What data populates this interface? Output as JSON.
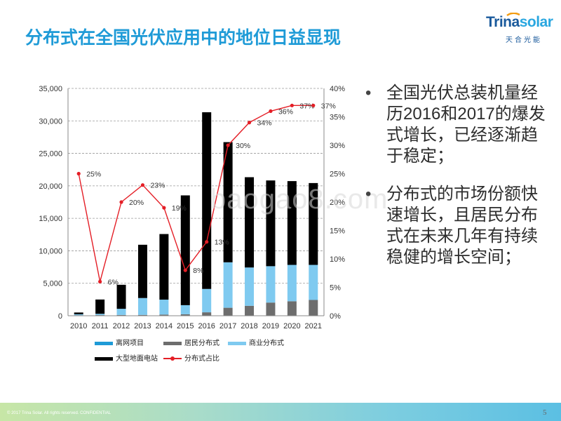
{
  "title": "分布式在全国光伏应用中的地位日益显现",
  "logo": {
    "word_a": "Trina",
    "word_b": "solar",
    "sub": "天合光能"
  },
  "watermark": "baogao8.com",
  "bullets": [
    "全国光伏总装机量经历2016和2017的爆发式增长，已经逐渐趋于稳定；",
    "分布式的市场份额快速增长，且居民分布式在未来几年有持续稳健的增长空间；"
  ],
  "footer": {
    "copyright": "© 2017 Trina Solar. All rights reserved. CONFIDENTIAL",
    "page": "5"
  },
  "colors": {
    "offgrid": "#1f9bd7",
    "residential": "#6d6d6d",
    "commercial": "#7fcaf0",
    "utility": "#000000",
    "share": "#e41e26",
    "title": "#1f9bd7"
  },
  "chart_data": {
    "type": "bar",
    "stacked": true,
    "categories": [
      "2010",
      "2011",
      "2012",
      "2013",
      "2014",
      "2015",
      "2016",
      "2017",
      "2018",
      "2019",
      "2020",
      "2021"
    ],
    "series": [
      {
        "name": "离网项目",
        "values": [
          50,
          50,
          40,
          30,
          30,
          30,
          30,
          30,
          30,
          30,
          30,
          30
        ]
      },
      {
        "name": "居民分布式",
        "values": [
          30,
          50,
          80,
          100,
          150,
          200,
          500,
          1200,
          1500,
          2000,
          2200,
          2400
        ]
      },
      {
        "name": "商业分布式",
        "values": [
          150,
          200,
          950,
          2600,
          2300,
          1400,
          3600,
          7000,
          5900,
          5600,
          5600,
          5400
        ]
      },
      {
        "name": "大型地面电站",
        "values": [
          270,
          2200,
          3700,
          8200,
          10100,
          16900,
          27200,
          18500,
          13900,
          13200,
          12900,
          12600
        ]
      }
    ],
    "line": {
      "name": "分布式占比",
      "axis": "right",
      "values": [
        25,
        6,
        20,
        23,
        19,
        8,
        13,
        30,
        34,
        36,
        37,
        37
      ],
      "labels": [
        "25%",
        "6%",
        "20%",
        "23%",
        "19%",
        "8%",
        "13%",
        "30%",
        "34%",
        "36%",
        "37%",
        "37%"
      ]
    },
    "ylim": [
      0,
      35000
    ],
    "y_ticks": [
      "0",
      "5,000",
      "10,000",
      "15,000",
      "20,000",
      "25,000",
      "30,000",
      "35,000"
    ],
    "y2lim": [
      0,
      40
    ],
    "y2_ticks": [
      "0%",
      "5%",
      "10%",
      "15%",
      "20%",
      "25%",
      "30%",
      "35%",
      "40%"
    ],
    "grid": "horizontal-dashed",
    "legend_position": "bottom"
  }
}
